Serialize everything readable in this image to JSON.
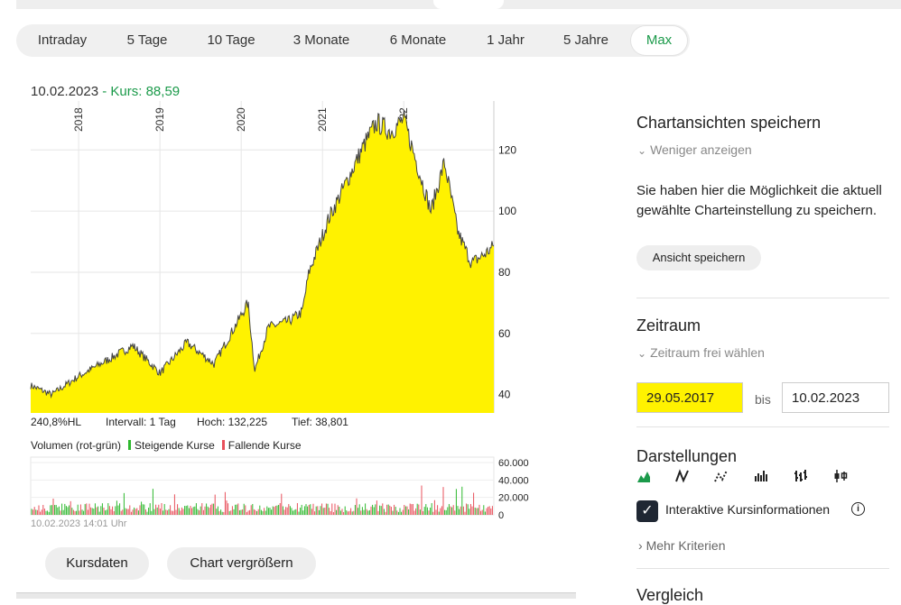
{
  "tabs": [
    {
      "label": "Intraday",
      "active": false
    },
    {
      "label": "5 Tage",
      "active": false
    },
    {
      "label": "10 Tage",
      "active": false
    },
    {
      "label": "3 Monate",
      "active": false
    },
    {
      "label": "6 Monate",
      "active": false
    },
    {
      "label": "1 Jahr",
      "active": false
    },
    {
      "label": "5 Jahre",
      "active": false
    },
    {
      "label": "Max",
      "active": true
    }
  ],
  "header": {
    "date": "10.02.2023",
    "kurs_label": "- Kurs: 88,59"
  },
  "stats": {
    "change": "240,8%HL",
    "interval": "Intervall: 1 Tag",
    "high": "Hoch: 132,225",
    "low": "Tief: 38,801"
  },
  "volume": {
    "title": "Volumen (rot-grün)",
    "rising": "Steigende Kurse",
    "falling": "Fallende Kurse"
  },
  "timestamp": "10.02.2023 14:01 Uhr",
  "buttons": {
    "kursdaten": "Kursdaten",
    "enlarge": "Chart vergrößern"
  },
  "sidebar": {
    "save_title": "Chartansichten speichern",
    "less": "Weniger anzeigen",
    "save_text": "Sie haben hier die Möglichkeit die aktuell gewählte Charteinstellung zu speichern.",
    "save_button": "Ansicht speichern",
    "range_title": "Zeitraum",
    "range_link": "Zeitraum frei wählen",
    "from": "29.05.2017",
    "to_label": "bis",
    "to": "10.02.2023",
    "display_title": "Darstellungen",
    "display_icons": [
      "mountain-chart-icon",
      "line-chart-icon",
      "dotted-line-chart-icon",
      "bar-chart-icon",
      "ohlc-chart-icon",
      "candlestick-chart-icon"
    ],
    "interactive_label": "Interaktive Kursinformationen",
    "interactive_checked": true,
    "more": "Mehr Kriterien",
    "next_title": "Vergleich"
  },
  "colors": {
    "accent": "#1b9a4a",
    "area_fill": "#fff200",
    "line": "#444444",
    "rising": "#2db82d",
    "falling": "#e8505b",
    "checkbox": "#1f2733"
  },
  "chart_data": [
    {
      "type": "area",
      "x_ticks": [
        "2018",
        "2019",
        "2020",
        "2021",
        "2022"
      ],
      "y_ticks": [
        40,
        60,
        80,
        100,
        120
      ],
      "ylim": [
        34,
        136
      ],
      "x": [
        "2017-05",
        "2017-09",
        "2018-01",
        "2018-05",
        "2018-09",
        "2019-01",
        "2019-05",
        "2019-09",
        "2020-01",
        "2020-02",
        "2020-03",
        "2020-05",
        "2020-08",
        "2020-10",
        "2020-11",
        "2021-02",
        "2021-04",
        "2021-07",
        "2021-09",
        "2021-11",
        "2022-01",
        "2022-03",
        "2022-05",
        "2022-07",
        "2022-09",
        "2022-11",
        "2023-01",
        "2023-02"
      ],
      "y": [
        43,
        40,
        46,
        51,
        56,
        47,
        57,
        50,
        66,
        70,
        48,
        62,
        64,
        67,
        80,
        98,
        107,
        121,
        129,
        126,
        130,
        115,
        100,
        116,
        93,
        83,
        86,
        88.59
      ],
      "grid": true
    },
    {
      "type": "bar",
      "y_ticks": [
        "0",
        "20.000",
        "40.000",
        "60.000"
      ],
      "ylim": [
        0,
        60000
      ]
    }
  ]
}
